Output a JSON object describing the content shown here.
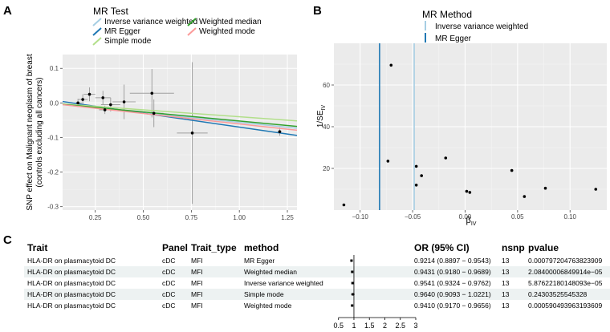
{
  "panels": {
    "a": "A",
    "b": "B",
    "c": "C"
  },
  "chart_data": [
    {
      "type": "scatter",
      "title": "",
      "legend_title": "MR Test",
      "legend": [
        {
          "name": "Inverse variance weighted",
          "color": "#a6cee3"
        },
        {
          "name": "MR Egger",
          "color": "#1f78b4"
        },
        {
          "name": "Simple mode",
          "color": "#b2df8a"
        },
        {
          "name": "Weighted median",
          "color": "#33a02c"
        },
        {
          "name": "Weighted mode",
          "color": "#fb9a99"
        }
      ],
      "ylabel_lines": [
        "SNP effect on Malignant neoplasm of breast",
        "(controls excluding all cancers)"
      ],
      "xlabel": "",
      "xlim": [
        0.08,
        1.3
      ],
      "ylim": [
        -0.31,
        0.14
      ],
      "xticks": [
        0.25,
        0.5,
        0.75,
        1.0,
        1.25
      ],
      "xtick_labels": [
        "0.25",
        "0.50",
        "0.75",
        "1.00",
        "1.25"
      ],
      "yticks": [
        0.1,
        0.0,
        -0.1,
        -0.2,
        -0.3
      ],
      "ytick_labels": [
        "0.1",
        "0.0",
        "-0.1",
        "-0.2",
        "-0.3"
      ],
      "points": [
        {
          "x": 0.16,
          "y": 0.0,
          "xerr": 0.02,
          "yerr": 0.012
        },
        {
          "x": 0.185,
          "y": 0.01,
          "xerr": 0.025,
          "yerr": 0.015
        },
        {
          "x": 0.22,
          "y": 0.025,
          "xerr": 0.03,
          "yerr": 0.02
        },
        {
          "x": 0.29,
          "y": 0.015,
          "xerr": 0.04,
          "yerr": 0.02
        },
        {
          "x": 0.3,
          "y": -0.02,
          "xerr": 0.03,
          "yerr": 0.012
        },
        {
          "x": 0.33,
          "y": -0.005,
          "xerr": 0.05,
          "yerr": 0.02
        },
        {
          "x": 0.4,
          "y": 0.003,
          "xerr": 0.06,
          "yerr": 0.05
        },
        {
          "x": 0.545,
          "y": 0.028,
          "xerr": 0.115,
          "yerr": 0.07
        },
        {
          "x": 0.555,
          "y": -0.03,
          "xerr": 0.05,
          "yerr": 0.04
        },
        {
          "x": 0.755,
          "y": -0.087,
          "xerr": 0.08,
          "yerr": 0.205
        },
        {
          "x": 1.21,
          "y": -0.083,
          "xerr": 0.01,
          "yerr": 0.012
        }
      ],
      "lines": [
        {
          "name": "Inverse variance weighted",
          "x0": 0.08,
          "y0": -0.005,
          "x1": 1.3,
          "y1": -0.073
        },
        {
          "name": "MR Egger",
          "x0": 0.08,
          "y0": 0.004,
          "x1": 1.3,
          "y1": -0.094
        },
        {
          "name": "Simple mode",
          "x0": 0.08,
          "y0": -0.003,
          "x1": 1.3,
          "y1": -0.052
        },
        {
          "name": "Weighted median",
          "x0": 0.08,
          "y0": -0.004,
          "x1": 1.3,
          "y1": -0.068
        },
        {
          "name": "Weighted mode",
          "x0": 0.08,
          "y0": -0.005,
          "x1": 1.3,
          "y1": -0.079
        }
      ]
    },
    {
      "type": "scatter",
      "title": "",
      "legend_title": "MR Method",
      "legend": [
        {
          "name": "Inverse variance weighted",
          "color": "#a6cee3"
        },
        {
          "name": "MR Egger",
          "color": "#1f78b4"
        }
      ],
      "ylabel": "1/SE",
      "ylabel_sub": "IV",
      "xlabel": "β",
      "xlabel_sub": "IV",
      "xlim": [
        -0.125,
        0.135
      ],
      "ylim": [
        0,
        80
      ],
      "xticks": [
        -0.1,
        -0.05,
        0.0,
        0.05,
        0.1
      ],
      "xtick_labels": [
        "−0.10",
        "−0.05",
        "0.00",
        "0.05",
        "0.10"
      ],
      "yticks": [
        20,
        40,
        60
      ],
      "ytick_labels": [
        "20",
        "40",
        "60"
      ],
      "vlines": [
        {
          "name": "MR Egger",
          "x": -0.0815
        },
        {
          "name": "Inverse variance weighted",
          "x": -0.0485
        }
      ],
      "points": [
        {
          "x": -0.1155,
          "y": 2.5
        },
        {
          "x": -0.0705,
          "y": 69.5
        },
        {
          "x": -0.0735,
          "y": 23.5
        },
        {
          "x": -0.0465,
          "y": 21.0
        },
        {
          "x": -0.0415,
          "y": 16.5
        },
        {
          "x": -0.0465,
          "y": 12.0
        },
        {
          "x": -0.0185,
          "y": 25.0
        },
        {
          "x": 0.0015,
          "y": 9.0
        },
        {
          "x": 0.0045,
          "y": 8.5
        },
        {
          "x": 0.0445,
          "y": 19.0
        },
        {
          "x": 0.0565,
          "y": 6.5
        },
        {
          "x": 0.0765,
          "y": 10.5
        },
        {
          "x": 0.1245,
          "y": 10.0
        }
      ]
    },
    {
      "type": "table",
      "columns": [
        "Trait",
        "Panel",
        "Trait_type",
        "method",
        "OR (95% CI)",
        "nsnp",
        "pvalue"
      ],
      "rows": [
        {
          "trait": "HLA-DR on plasmacytoid DC",
          "panel": "cDC",
          "trait_type": "MFI",
          "method": "MR Egger",
          "or_ci": "0.9214 (0.8897 − 0.9543)",
          "or": 0.9214,
          "lo": 0.8897,
          "hi": 0.9543,
          "nsnp": "13",
          "pvalue": "0.000797204763823909"
        },
        {
          "trait": "HLA-DR on plasmacytoid DC",
          "panel": "cDC",
          "trait_type": "MFI",
          "method": "Weighted median",
          "or_ci": "0.9431 (0.9180 − 0.9689)",
          "or": 0.9431,
          "lo": 0.918,
          "hi": 0.9689,
          "nsnp": "13",
          "pvalue": "2.08400006849914e−05"
        },
        {
          "trait": "HLA-DR on plasmacytoid DC",
          "panel": "cDC",
          "trait_type": "MFI",
          "method": "Inverse variance weighted",
          "or_ci": "0.9541 (0.9324 − 0.9762)",
          "or": 0.9541,
          "lo": 0.9324,
          "hi": 0.9762,
          "nsnp": "13",
          "pvalue": "5.87622180148093e−05"
        },
        {
          "trait": "HLA-DR on plasmacytoid DC",
          "panel": "cDC",
          "trait_type": "MFI",
          "method": "Simple mode",
          "or_ci": "0.9640 (0.9093 − 1.0221)",
          "or": 0.964,
          "lo": 0.9093,
          "hi": 1.0221,
          "nsnp": "13",
          "pvalue": "0.24303525545328"
        },
        {
          "trait": "HLA-DR on plasmacytoid DC",
          "panel": "cDC",
          "trait_type": "MFI",
          "method": "Weighted mode",
          "or_ci": "0.9410 (0.9170 − 0.9656)",
          "or": 0.941,
          "lo": 0.917,
          "hi": 0.9656,
          "nsnp": "13",
          "pvalue": "0.000590493963193609"
        }
      ],
      "forest_xlim": [
        0.3,
        3.0
      ],
      "forest_ticks": [
        0.5,
        1,
        1.5,
        2,
        2.5,
        3
      ],
      "forest_tick_labels": [
        "0.5",
        "1",
        "1.5",
        "2",
        "2.5",
        "3"
      ],
      "forest_ref": 1
    }
  ]
}
